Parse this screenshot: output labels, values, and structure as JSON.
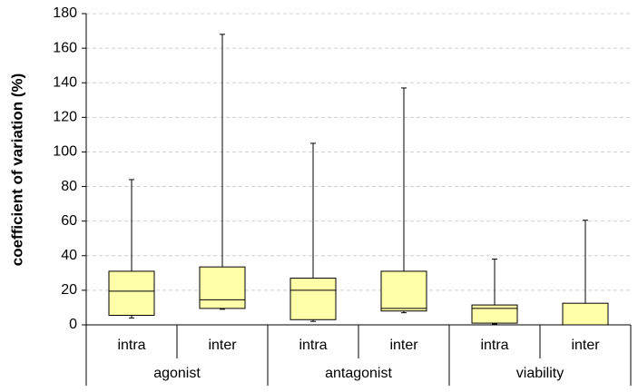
{
  "chart_data": {
    "type": "box",
    "ylabel": "coefficient of variation (%)",
    "ylim": [
      0,
      180
    ],
    "yticks": [
      0,
      20,
      40,
      60,
      80,
      100,
      120,
      140,
      160,
      180
    ],
    "grid": true,
    "color": "#ffffaa",
    "groups": [
      {
        "name": "agonist",
        "boxes": [
          {
            "label": "intra",
            "min": 4,
            "q1": 5.5,
            "median": 19.5,
            "q3": 31,
            "max": 84
          },
          {
            "label": "inter",
            "min": 9,
            "q1": 9.5,
            "median": 14.5,
            "q3": 33.5,
            "max": 168
          }
        ]
      },
      {
        "name": "antagonist",
        "boxes": [
          {
            "label": "intra",
            "min": 2,
            "q1": 3,
            "median": 20,
            "q3": 27,
            "max": 105
          },
          {
            "label": "inter",
            "min": 7,
            "q1": 8,
            "median": 9.5,
            "q3": 31,
            "max": 137
          }
        ]
      },
      {
        "name": "viability",
        "boxes": [
          {
            "label": "intra",
            "min": 0.5,
            "q1": 1,
            "median": 9.5,
            "q3": 11.5,
            "max": 38
          },
          {
            "label": "inter",
            "min": 0,
            "q1": 0,
            "median": 0,
            "q3": 12.5,
            "max": 60.5
          }
        ]
      }
    ]
  }
}
